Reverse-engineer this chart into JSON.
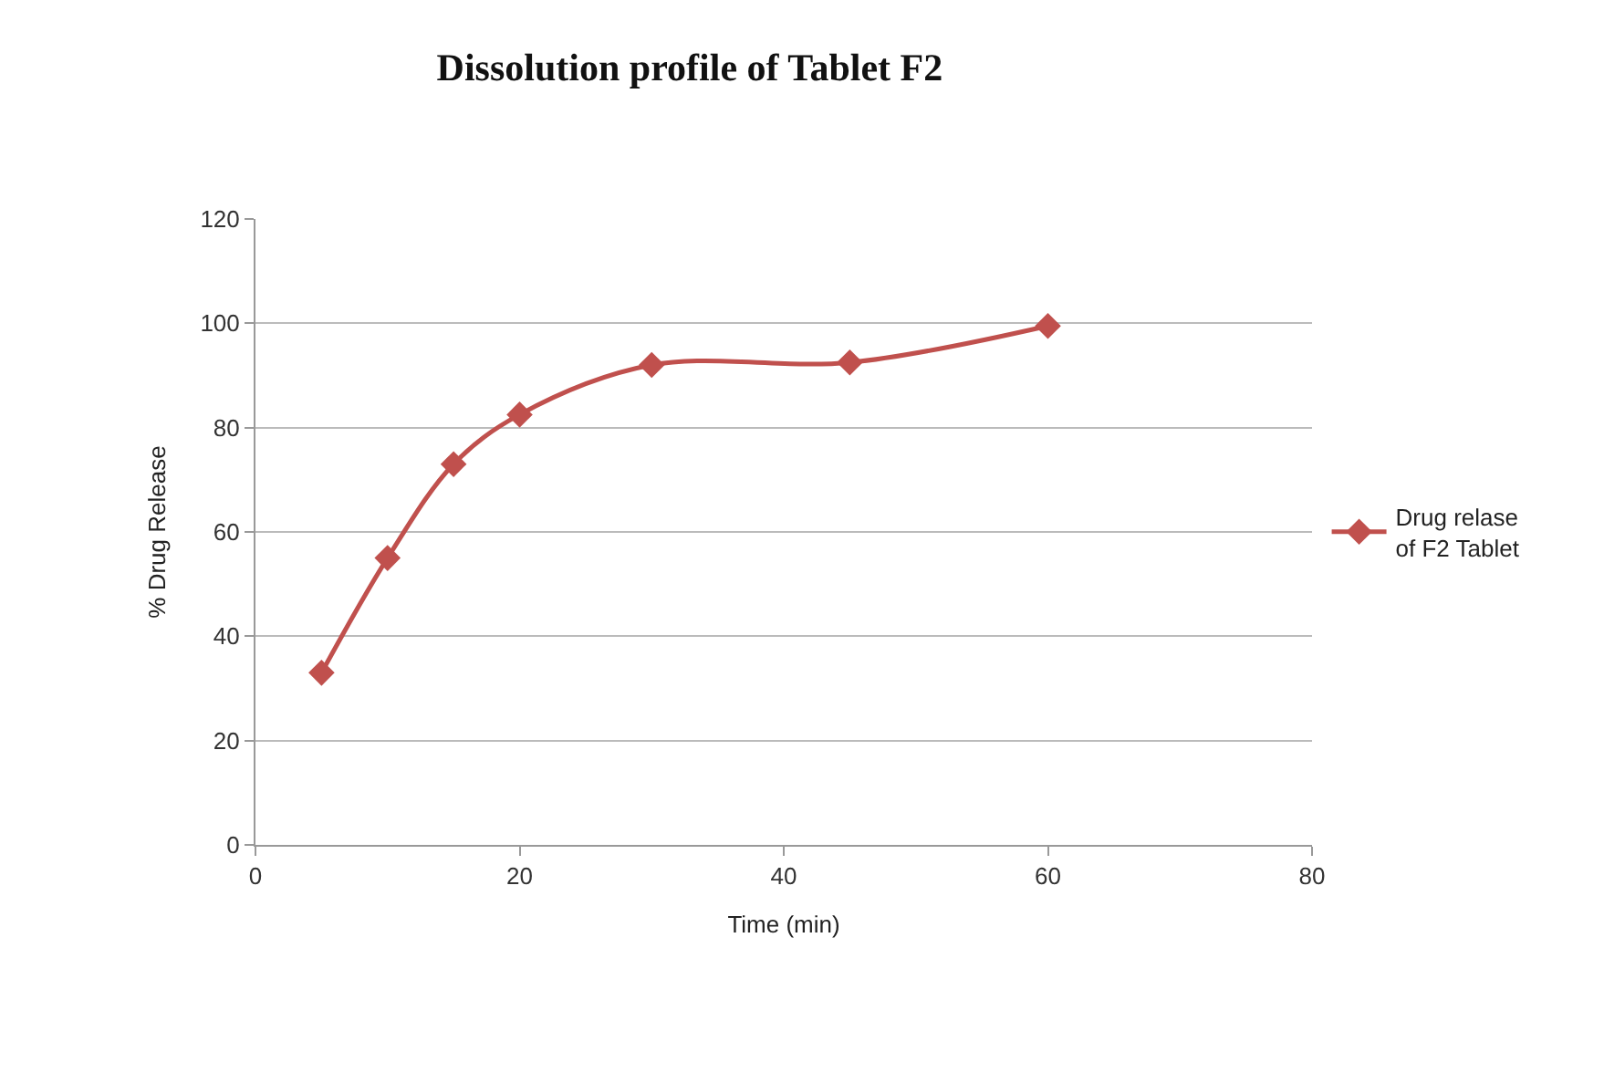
{
  "chart_data": {
    "type": "line",
    "title": "Dissolution profile of Tablet F2",
    "xlabel": "Time (min)",
    "ylabel": "% Drug Release",
    "x": [
      5,
      10,
      15,
      20,
      30,
      45,
      60
    ],
    "series": [
      {
        "name": "Drug relase of F2 Tablet",
        "color": "#c0504d",
        "values": [
          33,
          55,
          73,
          82.5,
          92,
          92.5,
          99.5
        ]
      }
    ],
    "xlim": [
      0,
      80
    ],
    "xticks": [
      0,
      20,
      40,
      60,
      80
    ],
    "ylim": [
      0,
      120
    ],
    "yticks": [
      0,
      20,
      40,
      60,
      80,
      100,
      120
    ],
    "grid": "y",
    "legend": "right",
    "marker": "diamond",
    "line_style": "solid"
  }
}
